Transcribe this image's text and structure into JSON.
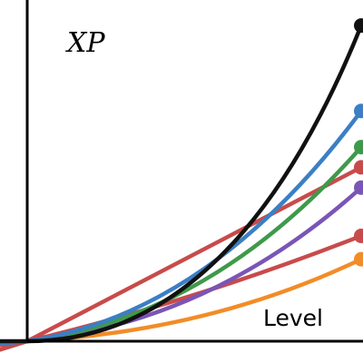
{
  "chart_data": {
    "type": "line",
    "title": "",
    "xlabel": "Level",
    "ylabel": "XP",
    "xlim": [
      0,
      1
    ],
    "ylim": [
      0,
      1
    ],
    "grid": false,
    "legend": "none",
    "origin": [
      0,
      0
    ],
    "series": [
      {
        "color": "#111111",
        "end": [
          1.0,
          0.935
        ],
        "shape": "convex-steep"
      },
      {
        "color": "#3b7fc4",
        "end": [
          1.0,
          0.682
        ],
        "shape": "convex"
      },
      {
        "color": "#3e9a4a",
        "end": [
          1.0,
          0.575
        ],
        "shape": "convex"
      },
      {
        "color": "#c84b4b",
        "end": [
          1.0,
          0.515
        ],
        "shape": "linear"
      },
      {
        "color": "#7a55b6",
        "end": [
          1.0,
          0.455
        ],
        "shape": "convex"
      },
      {
        "color": "#c84b4b",
        "end": [
          1.0,
          0.312
        ],
        "shape": "near-linear"
      },
      {
        "color": "#f28c28",
        "end": [
          1.0,
          0.243
        ],
        "shape": "convex"
      }
    ]
  }
}
